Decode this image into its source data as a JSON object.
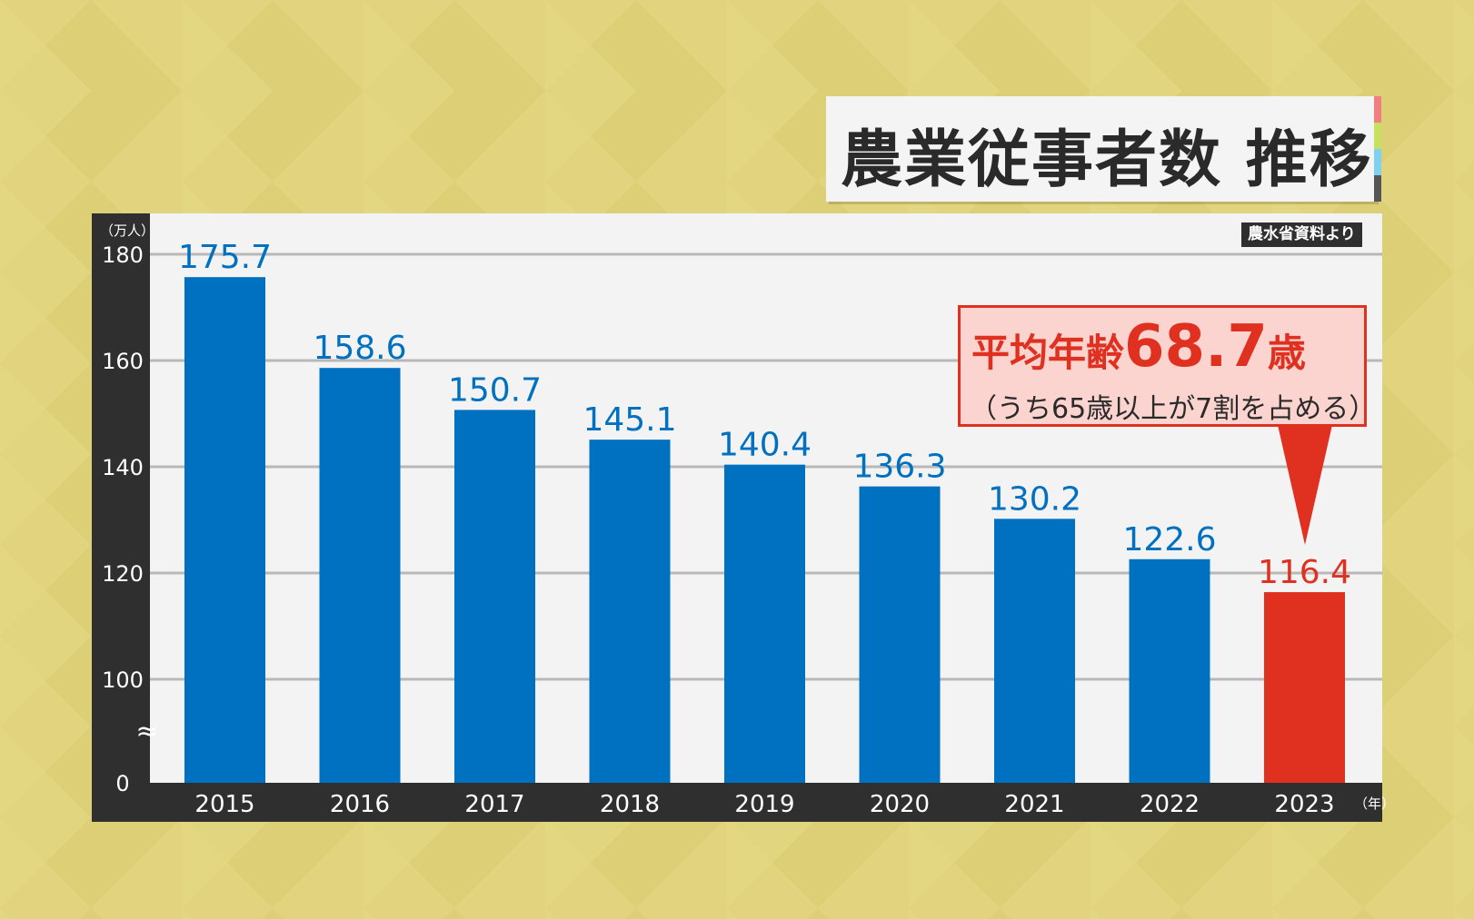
{
  "title": "農業従事者数 推移",
  "source": "農水省資料より",
  "callout": {
    "prefix": "平均年齢",
    "value": "68.7",
    "suffix": "歳",
    "note": "（うち65歳以上が7割を占める）"
  },
  "colors": {
    "bar": "#0070c0",
    "highlight": "#e03020",
    "background": "#e2d47e",
    "axis_panel": "#2f2f2f"
  },
  "chart_data": {
    "type": "bar",
    "title": "農業従事者数 推移",
    "ylabel": "（万人）",
    "xlabel": "（年）",
    "categories": [
      "2015",
      "2016",
      "2017",
      "2018",
      "2019",
      "2020",
      "2021",
      "2022",
      "2023"
    ],
    "values": [
      175.7,
      158.6,
      150.7,
      145.1,
      140.4,
      136.3,
      130.2,
      122.6,
      116.4
    ],
    "value_labels": [
      "175.7",
      "158.6",
      "150.7",
      "145.1",
      "140.4",
      "136.3",
      "130.2",
      "122.6",
      "116.4"
    ],
    "highlight_index": 8,
    "ylim": [
      0,
      180
    ],
    "axis_break": {
      "from": 0,
      "to": 100,
      "symbol": "≈"
    },
    "yticks": [
      0,
      100,
      120,
      140,
      160,
      180
    ],
    "grid": true
  }
}
